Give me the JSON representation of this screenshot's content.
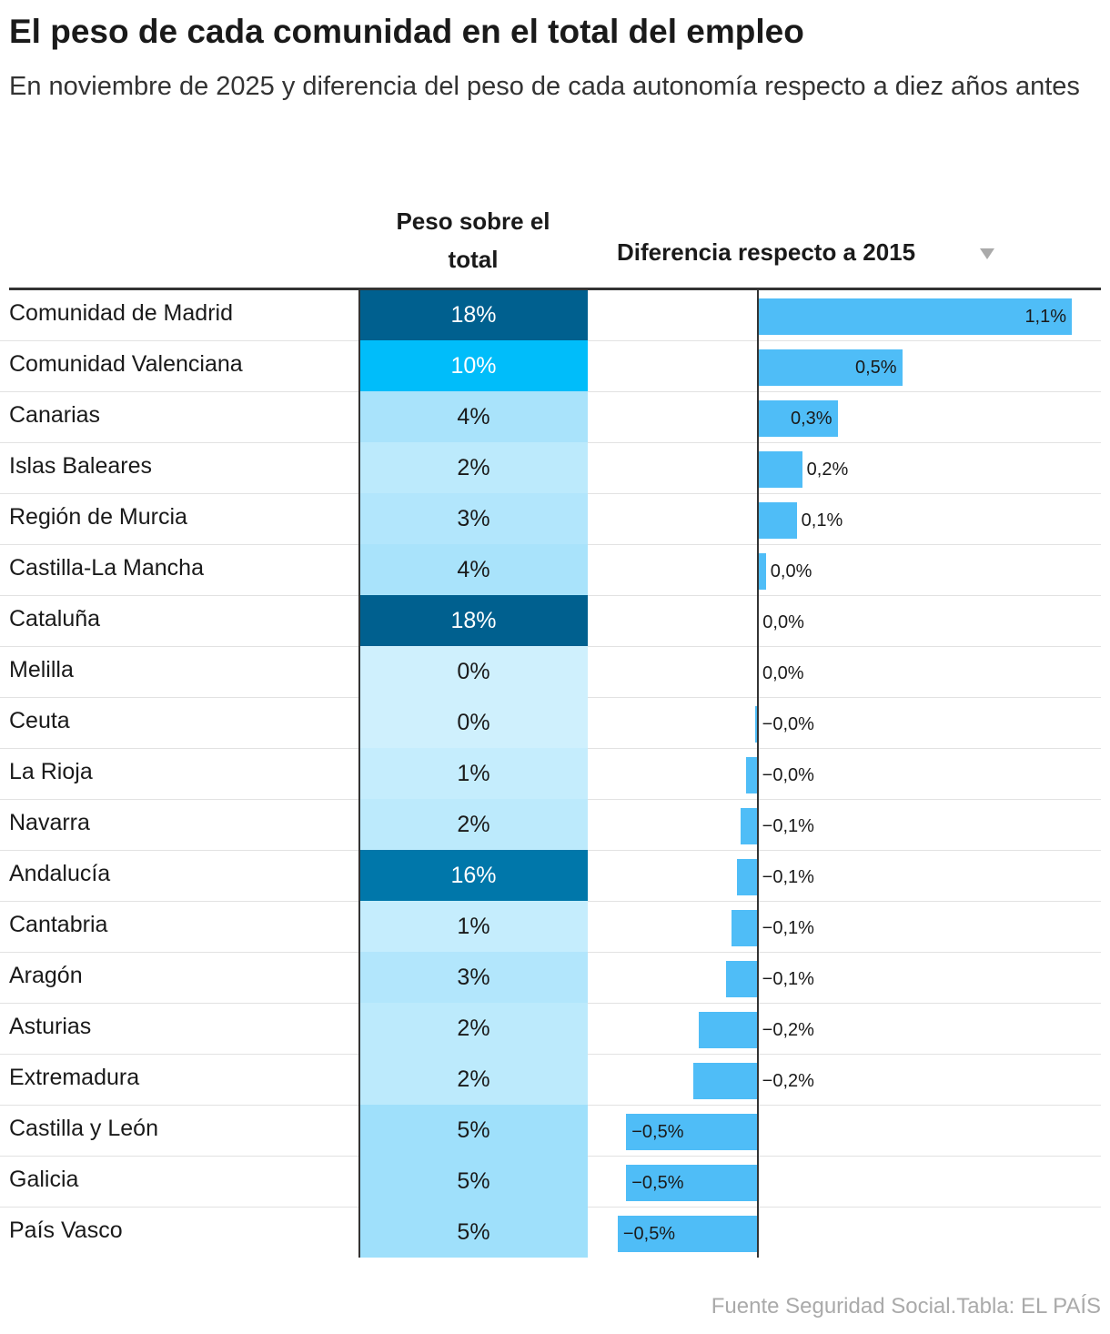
{
  "header": {
    "title": "El peso de cada comunidad en el total del empleo",
    "subtitle": "En noviembre de 2025 y diferencia del peso de cada autonomía respecto a diez años antes"
  },
  "table": {
    "columns": {
      "peso": "Peso sobre el total",
      "diff": "Diferencia respecto a 2015"
    },
    "peso_color_scale": [
      {
        "value": 0,
        "color": "#cff0fd"
      },
      {
        "value": 5,
        "color": "#9fe0fb"
      },
      {
        "value": 10,
        "color": "#00bdfa"
      },
      {
        "value": 18,
        "color": "#00608f"
      }
    ],
    "diff_color": "#4fbdf7",
    "diff_xlim": [
      -0.55,
      1.17
    ],
    "rows": [
      {
        "name": "Comunidad de Madrid",
        "peso": 18,
        "peso_label": "18%",
        "diff": 1.1,
        "diff_label": "1,1%"
      },
      {
        "name": "Comunidad Valenciana",
        "peso": 10,
        "peso_label": "10%",
        "diff": 0.506,
        "diff_label": "0,5%"
      },
      {
        "name": "Canarias",
        "peso": 4,
        "peso_label": "4%",
        "diff": 0.28,
        "diff_label": "0,3%"
      },
      {
        "name": "Islas Baleares",
        "peso": 2,
        "peso_label": "2%",
        "diff": 0.156,
        "diff_label": "0,2%"
      },
      {
        "name": "Región de Murcia",
        "peso": 3,
        "peso_label": "3%",
        "diff": 0.137,
        "diff_label": "0,1%"
      },
      {
        "name": "Castilla-La Mancha",
        "peso": 4,
        "peso_label": "4%",
        "diff": 0.029,
        "diff_label": "0,0%"
      },
      {
        "name": "Cataluña",
        "peso": 18,
        "peso_label": "18%",
        "diff": 0.002,
        "diff_label": "0,0%"
      },
      {
        "name": "Melilla",
        "peso": 0,
        "peso_label": "0%",
        "diff": 0.001,
        "diff_label": "0,0%"
      },
      {
        "name": "Ceuta",
        "peso": 0,
        "peso_label": "0%",
        "diff": -0.01,
        "diff_label": "−0,0%"
      },
      {
        "name": "La Rioja",
        "peso": 1,
        "peso_label": "1%",
        "diff": -0.041,
        "diff_label": "−0,0%"
      },
      {
        "name": "Navarra",
        "peso": 2,
        "peso_label": "2%",
        "diff": -0.06,
        "diff_label": "−0,1%"
      },
      {
        "name": "Andalucía",
        "peso": 16,
        "peso_label": "16%",
        "diff": -0.073,
        "diff_label": "−0,1%"
      },
      {
        "name": "Cantabria",
        "peso": 1,
        "peso_label": "1%",
        "diff": -0.092,
        "diff_label": "−0,1%"
      },
      {
        "name": "Aragón",
        "peso": 3,
        "peso_label": "3%",
        "diff": -0.11,
        "diff_label": "−0,1%"
      },
      {
        "name": "Asturias",
        "peso": 2,
        "peso_label": "2%",
        "diff": -0.207,
        "diff_label": "−0,2%"
      },
      {
        "name": "Extremadura",
        "peso": 2,
        "peso_label": "2%",
        "diff": -0.226,
        "diff_label": "−0,2%"
      },
      {
        "name": "Castilla y León",
        "peso": 5,
        "peso_label": "5%",
        "diff": -0.46,
        "diff_label": "−0,5%"
      },
      {
        "name": "Galicia",
        "peso": 5,
        "peso_label": "5%",
        "diff": -0.46,
        "diff_label": "−0,5%"
      },
      {
        "name": "País Vasco",
        "peso": 5,
        "peso_label": "5%",
        "diff": -0.49,
        "diff_label": "−0,5%"
      }
    ]
  },
  "footer": {
    "source": "Fuente Seguridad Social.Tabla: EL PAÍS"
  }
}
